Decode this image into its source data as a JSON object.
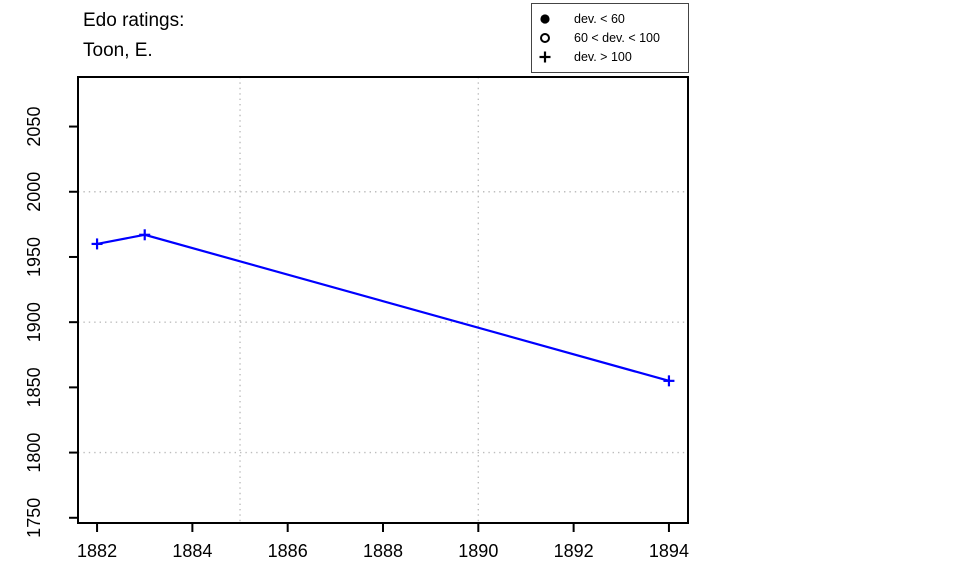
{
  "title": {
    "line1": "Edo ratings:",
    "line2": "Toon, E."
  },
  "legend": {
    "items": [
      {
        "symbol": "filled-circle",
        "label": "dev. < 60"
      },
      {
        "symbol": "open-circle",
        "label": "60 < dev. < 100"
      },
      {
        "symbol": "plus",
        "label": "dev. > 100"
      }
    ]
  },
  "chart_data": {
    "type": "line",
    "title": "Edo ratings: Toon, E.",
    "series": [
      {
        "name": "Edo rating",
        "x": [
          1882,
          1883,
          1894
        ],
        "y": [
          1960,
          1967,
          1855
        ],
        "markers": [
          "plus",
          "plus",
          "plus"
        ],
        "line_color": "#0000FF"
      }
    ],
    "xlabel": "",
    "ylabel": "",
    "xlim": [
      1881.6,
      1894.4
    ],
    "ylim": [
      1746,
      2088
    ],
    "x_ticks": [
      1882,
      1884,
      1886,
      1888,
      1890,
      1892,
      1894
    ],
    "y_ticks": [
      1750,
      1800,
      1850,
      1900,
      1950,
      2000,
      2050
    ],
    "x_gridlines": [
      1885,
      1890
    ],
    "y_gridlines": [
      1800,
      1900,
      2000
    ],
    "grid_style": "dotted",
    "grid_color": "#BDBDBD",
    "axis_color": "#000000",
    "legend_position": "top-right",
    "legend_title": null
  }
}
